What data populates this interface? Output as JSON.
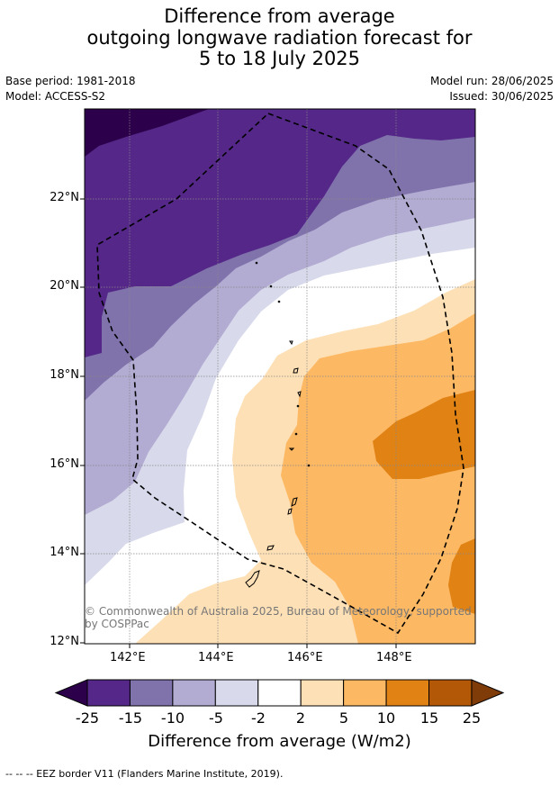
{
  "title": {
    "line1": "Difference from average",
    "line2": "outgoing longwave radiation forecast for",
    "line3": "5 to 18 July 2025"
  },
  "meta": {
    "base_period": "Base period: 1981-2018",
    "model": "Model: ACCESS-S2",
    "model_run": "Model run: 28/06/2025",
    "issued": "Issued: 30/06/2025"
  },
  "map": {
    "lat_labels": [
      "22°N",
      "20°N",
      "18°N",
      "16°N",
      "14°N",
      "12°N"
    ],
    "lon_labels": [
      "142°E",
      "144°E",
      "146°E",
      "148°E"
    ],
    "copyright": "© Commonwealth of Australia 2025, Bureau of Meteorology, supported by COSPPac"
  },
  "colorbar": {
    "ticks": [
      "-25",
      "-15",
      "-10",
      "-5",
      "-2",
      "2",
      "5",
      "10",
      "15",
      "25"
    ],
    "label": "Difference from average (W/m2)",
    "colors": [
      "#2d004b",
      "#542788",
      "#8073ac",
      "#b2abd2",
      "#d8daeb",
      "#ffffff",
      "#fee0b6",
      "#fdb863",
      "#e08214",
      "#b35806",
      "#7f3b08"
    ]
  },
  "footer": {
    "legend": "--  --  -- EEZ border V11 (Flanders Marine Institute, 2019)."
  }
}
